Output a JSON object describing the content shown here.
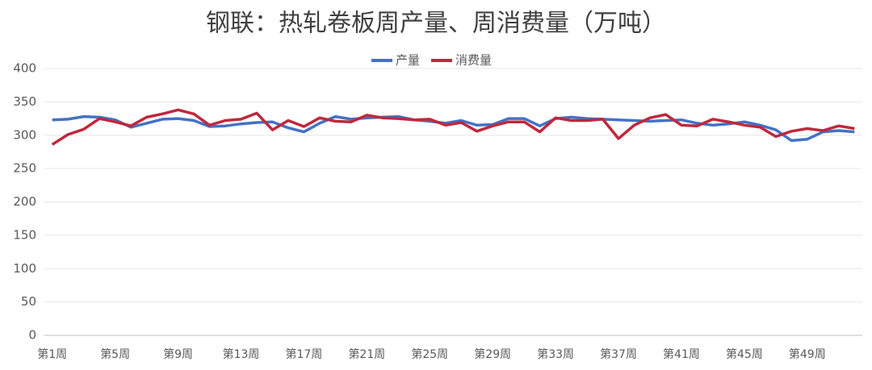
{
  "chart_data": {
    "type": "line",
    "title": "钢联：热轧卷板周产量、周消费量（万吨）",
    "categories": [
      "第1周",
      null,
      null,
      null,
      "第5周",
      null,
      null,
      null,
      "第9周",
      null,
      null,
      null,
      "第13周",
      null,
      null,
      null,
      "第17周",
      null,
      null,
      null,
      "第21周",
      null,
      null,
      null,
      "第25周",
      null,
      null,
      null,
      "第29周",
      null,
      null,
      null,
      "第33周",
      null,
      null,
      null,
      "第37周",
      null,
      null,
      null,
      "第41周",
      null,
      null,
      null,
      "第45周",
      null,
      null,
      null,
      "第49周",
      null,
      null,
      null
    ],
    "series": [
      {
        "name": "产量",
        "color": "#4472c4",
        "values": [
          323,
          324,
          328,
          327,
          323,
          312,
          318,
          324,
          325,
          322,
          313,
          314,
          317,
          319,
          320,
          311,
          305,
          318,
          328,
          324,
          326,
          327,
          328,
          323,
          321,
          318,
          322,
          315,
          316,
          325,
          325,
          314,
          325,
          327,
          325,
          324,
          323,
          322,
          321,
          322,
          323,
          318,
          315,
          317,
          320,
          315,
          308,
          292,
          294,
          305,
          307,
          305
        ]
      },
      {
        "name": "消费量",
        "color": "#c0283c",
        "values": [
          286,
          301,
          309,
          325,
          320,
          314,
          327,
          332,
          338,
          332,
          315,
          322,
          324,
          333,
          308,
          322,
          313,
          326,
          321,
          320,
          330,
          326,
          325,
          323,
          324,
          315,
          319,
          306,
          314,
          320,
          320,
          305,
          326,
          322,
          322,
          324,
          295,
          315,
          326,
          331,
          315,
          314,
          324,
          320,
          315,
          312,
          298,
          306,
          310,
          307,
          314,
          310
        ]
      }
    ],
    "ylim": [
      0,
      400
    ],
    "yticks": [
      0,
      50,
      100,
      150,
      200,
      250,
      300,
      350,
      400
    ],
    "grid": true,
    "legend": "top"
  }
}
